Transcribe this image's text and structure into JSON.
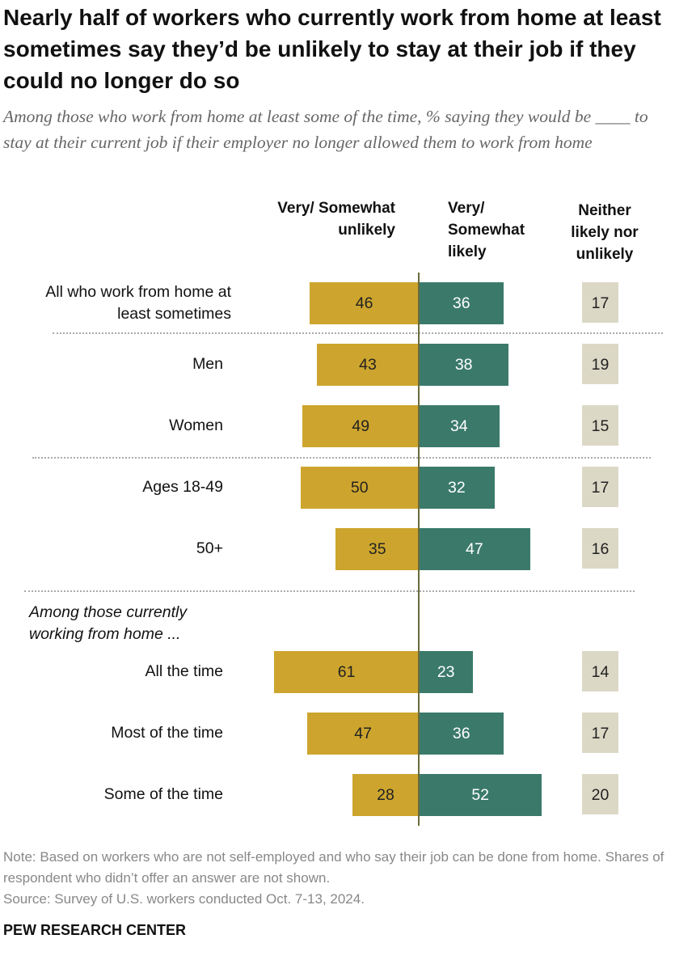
{
  "chart_data": {
    "type": "diverging-bar",
    "title": "Nearly half of workers who currently work from home at least sometimes say they’d be unlikely to stay at their job if they could no longer do so",
    "subtitle": "Among those who work from home at least some of the time, % saying they would be ____ to stay at their current job if their employer no longer allowed them to work from home",
    "categories": [
      "All who work from home at least sometimes",
      "Men",
      "Women",
      "Ages 18-49",
      "50+",
      "All the time",
      "Most of the time",
      "Some of the time"
    ],
    "annotations": [
      "Among those currently working from home ..."
    ],
    "series": [
      {
        "name": "Very/ Somewhat unlikely",
        "color": "#cda52e",
        "side": "left",
        "values": [
          46,
          43,
          49,
          50,
          35,
          61,
          47,
          28
        ]
      },
      {
        "name": "Very/ Somewhat likely",
        "color": "#3b7a6b",
        "side": "right",
        "values": [
          36,
          38,
          34,
          32,
          47,
          23,
          36,
          52
        ]
      },
      {
        "name": "Neither likely nor unlikely",
        "color": "#dcd8c6",
        "side": "box",
        "values": [
          17,
          19,
          15,
          17,
          16,
          14,
          17,
          20
        ]
      }
    ],
    "note": "Note: Based on workers who are not self-employed and who say their job can be done from home. Shares of respondent who didn’t offer an answer are not shown.",
    "source": "Source: Survey of U.S. workers conducted Oct. 7-13, 2024.",
    "credit": "PEW RESEARCH CENTER"
  }
}
